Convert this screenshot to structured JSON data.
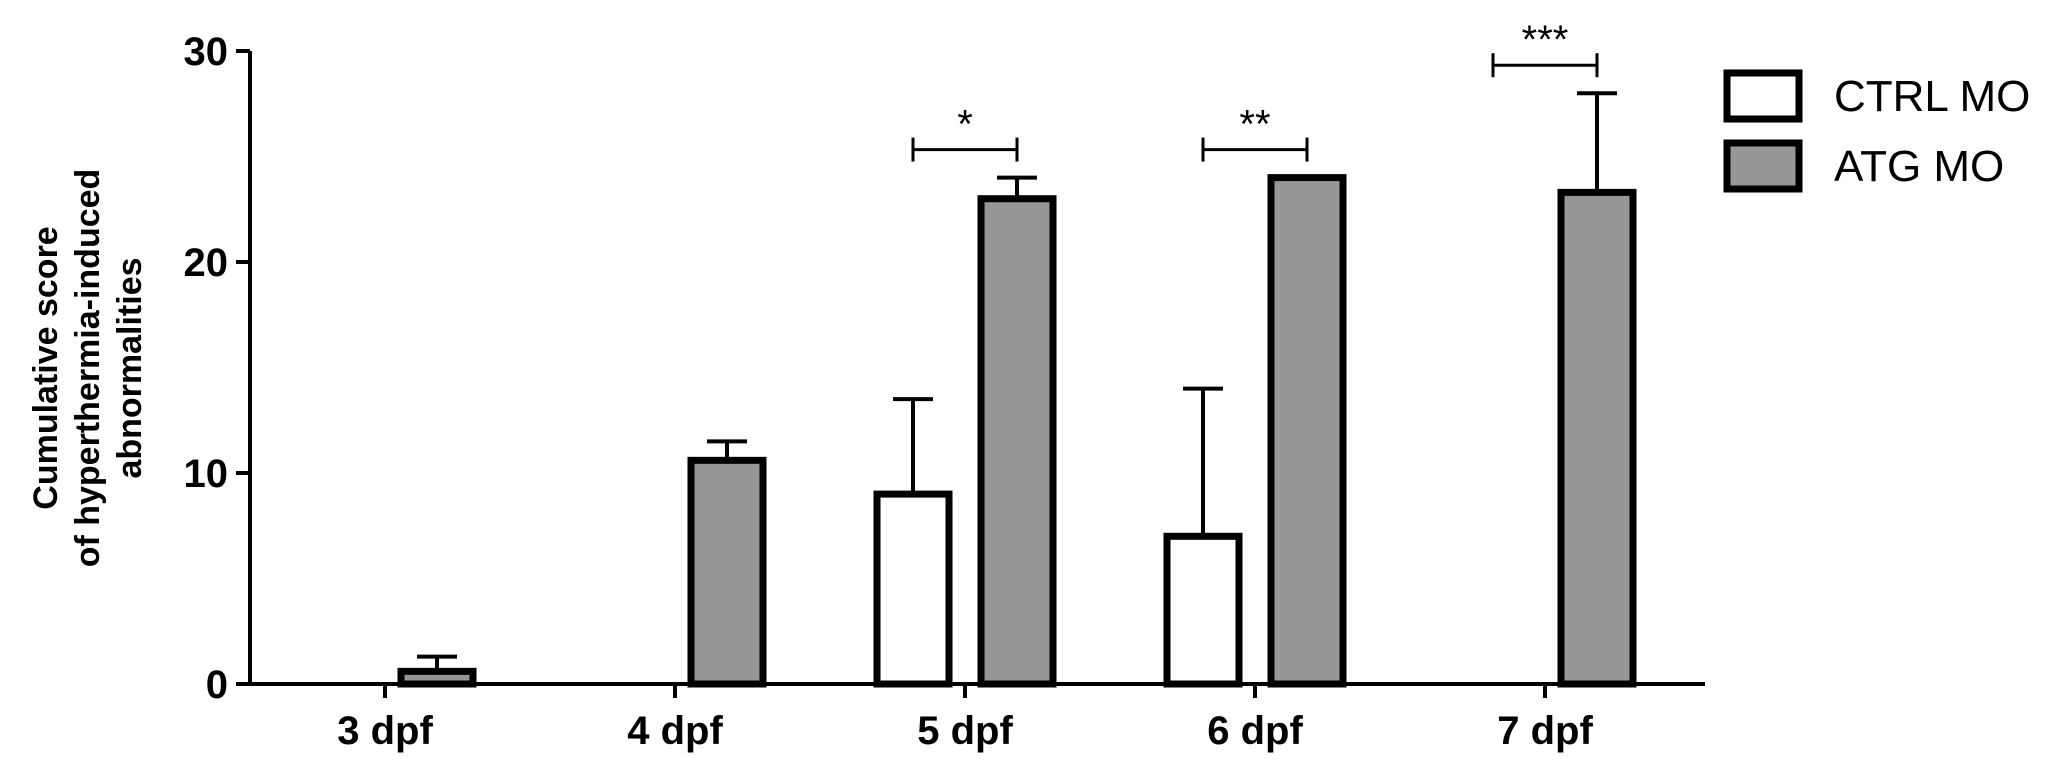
{
  "chart_data": {
    "type": "bar",
    "title": "",
    "xlabel": "",
    "ylabel_lines": [
      "Cumulative score",
      "of hyperthermia-induced",
      "abnormalities"
    ],
    "categories": [
      "3 dpf",
      "4 dpf",
      "5 dpf",
      "6 dpf",
      "7 dpf"
    ],
    "ylim": [
      0,
      30
    ],
    "yticks": [
      0,
      10,
      20,
      30
    ],
    "series": [
      {
        "name": "CTRL MO",
        "color": "#ffffff",
        "values": [
          0,
          0,
          9,
          7,
          0
        ],
        "errors": [
          0,
          0,
          4.5,
          7,
          0
        ]
      },
      {
        "name": "ATG MO",
        "color": "#969696",
        "values": [
          0.6,
          10.6,
          23,
          24,
          23.3
        ],
        "errors": [
          0.7,
          0.9,
          1,
          0,
          4.7
        ]
      }
    ],
    "significance": [
      {
        "category": "5 dpf",
        "label": "*"
      },
      {
        "category": "6 dpf",
        "label": "**"
      },
      {
        "category": "7 dpf",
        "label": "***"
      }
    ],
    "legend_position": "top-right",
    "grid": false
  }
}
